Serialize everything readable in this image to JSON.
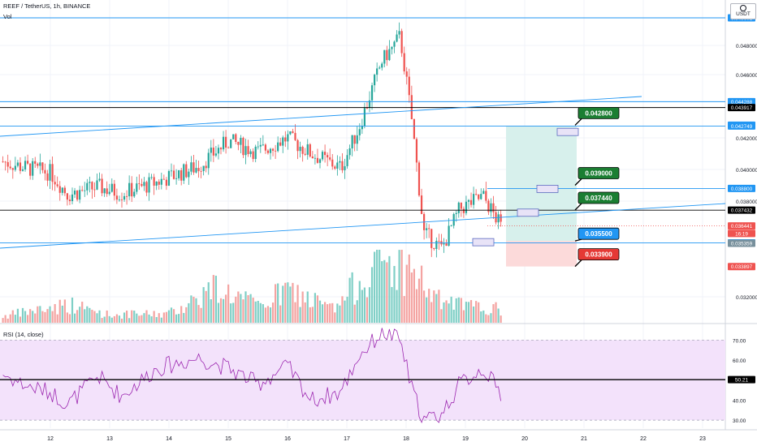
{
  "header": {
    "symbol_title": "REEF / TetherUS, 1h, BINANCE",
    "volume_label": "Vol",
    "rsi_label": "RSI (14, close)",
    "currency": "USDT"
  },
  "colors": {
    "bull": "#26a69a",
    "bear": "#ef5350",
    "line_blue": "#2196f3",
    "line_black": "#000000",
    "rsi_line": "#9c27b0",
    "rsi_band": "#f3e2fb",
    "target": "#d7f0ec",
    "stop": "#fcdada",
    "tag_green": "#1b7e32",
    "tag_blue": "#2196f3",
    "tag_red": "#e53935"
  },
  "price_axis": {
    "ticks": [
      "0.048000",
      "0.046000",
      "0.042000",
      "0.040000",
      "0.038000",
      "0.032000"
    ],
    "ylim": [
      0.03,
      0.0505
    ],
    "markers": [
      {
        "text": "0.049601",
        "kind": "blue",
        "price": 0.049601
      },
      {
        "text": "0.044288",
        "kind": "blue",
        "price": 0.044288
      },
      {
        "text": "0.043917",
        "kind": "black",
        "price": 0.043917
      },
      {
        "text": "0.042801",
        "kind": "blue",
        "price": 0.042801
      },
      {
        "text": "0.042749",
        "kind": "blue",
        "price": 0.042749
      },
      {
        "text": "0.038800",
        "kind": "blue",
        "price": 0.0388
      },
      {
        "text": "0.037432",
        "kind": "black",
        "price": 0.037432
      },
      {
        "text": "0.036441",
        "kind": "red",
        "price": 0.036441
      },
      {
        "text": "16:19",
        "kind": "red",
        "price": 0.03597
      },
      {
        "text": "0.035384",
        "kind": "blue",
        "price": 0.035384
      },
      {
        "text": "0.035359",
        "kind": "gray",
        "price": 0.035359
      },
      {
        "text": "0.033897",
        "kind": "red",
        "price": 0.033897
      }
    ]
  },
  "time_axis": {
    "labels": [
      "12",
      "13",
      "14",
      "15",
      "16",
      "17",
      "18",
      "19",
      "20",
      "21",
      "22",
      "23"
    ]
  },
  "rsi": {
    "ticks": [
      "70.00",
      "60.00",
      "40.00",
      "30.00"
    ],
    "current": "50.21"
  },
  "trade_tags": [
    {
      "text": "0.042800",
      "kind": "green",
      "price": 0.0428
    },
    {
      "text": "0.039000",
      "kind": "green",
      "price": 0.039
    },
    {
      "text": "0.037440",
      "kind": "green",
      "price": 0.03744
    },
    {
      "text": "0.035500",
      "kind": "blue",
      "price": 0.0355
    },
    {
      "text": "0.033900",
      "kind": "red",
      "price": 0.0339
    }
  ],
  "chart_data": {
    "type": "candlestick",
    "title": "REEF / TetherUS, 1h, BINANCE",
    "x_labels": [
      "12",
      "13",
      "14",
      "15",
      "16",
      "17",
      "18",
      "19",
      "20",
      "21",
      "22",
      "23"
    ],
    "ylim": [
      0.03,
      0.0505
    ],
    "close_path": [
      {
        "day": 11.2,
        "price": 0.0405
      },
      {
        "day": 11.6,
        "price": 0.0401
      },
      {
        "day": 12.0,
        "price": 0.0398
      },
      {
        "day": 12.3,
        "price": 0.0384
      },
      {
        "day": 12.8,
        "price": 0.0389
      },
      {
        "day": 13.2,
        "price": 0.0385
      },
      {
        "day": 13.8,
        "price": 0.0392
      },
      {
        "day": 14.5,
        "price": 0.0402
      },
      {
        "day": 15.0,
        "price": 0.0418
      },
      {
        "day": 15.5,
        "price": 0.0411
      },
      {
        "day": 16.0,
        "price": 0.042
      },
      {
        "day": 16.4,
        "price": 0.041
      },
      {
        "day": 16.9,
        "price": 0.0401
      },
      {
        "day": 17.2,
        "price": 0.0426
      },
      {
        "day": 17.6,
        "price": 0.047
      },
      {
        "day": 17.9,
        "price": 0.0485
      },
      {
        "day": 18.1,
        "price": 0.043
      },
      {
        "day": 18.3,
        "price": 0.036
      },
      {
        "day": 18.6,
        "price": 0.035
      },
      {
        "day": 18.9,
        "price": 0.0375
      },
      {
        "day": 19.3,
        "price": 0.0383
      },
      {
        "day": 19.6,
        "price": 0.0364
      }
    ],
    "volume_path": [
      {
        "day": 11.2,
        "value": 0.1
      },
      {
        "day": 12.3,
        "value": 0.28
      },
      {
        "day": 13.0,
        "value": 0.12
      },
      {
        "day": 14.0,
        "value": 0.14
      },
      {
        "day": 14.8,
        "value": 0.55
      },
      {
        "day": 15.5,
        "value": 0.25
      },
      {
        "day": 16.0,
        "value": 0.5
      },
      {
        "day": 16.8,
        "value": 0.2
      },
      {
        "day": 17.5,
        "value": 0.95
      },
      {
        "day": 18.1,
        "value": 0.8
      },
      {
        "day": 18.5,
        "value": 0.35
      },
      {
        "day": 19.0,
        "value": 0.25
      },
      {
        "day": 19.6,
        "value": 0.2
      }
    ],
    "rsi_path": [
      {
        "day": 11.2,
        "value": 53
      },
      {
        "day": 11.6,
        "value": 47
      },
      {
        "day": 12.0,
        "value": 44
      },
      {
        "day": 12.3,
        "value": 38
      },
      {
        "day": 12.8,
        "value": 52
      },
      {
        "day": 13.2,
        "value": 42
      },
      {
        "day": 13.8,
        "value": 56
      },
      {
        "day": 14.5,
        "value": 61
      },
      {
        "day": 15.0,
        "value": 56
      },
      {
        "day": 15.5,
        "value": 48
      },
      {
        "day": 16.0,
        "value": 57
      },
      {
        "day": 16.4,
        "value": 40
      },
      {
        "day": 16.9,
        "value": 44
      },
      {
        "day": 17.2,
        "value": 62
      },
      {
        "day": 17.6,
        "value": 74
      },
      {
        "day": 17.9,
        "value": 70
      },
      {
        "day": 18.1,
        "value": 45
      },
      {
        "day": 18.3,
        "value": 30
      },
      {
        "day": 18.6,
        "value": 33
      },
      {
        "day": 18.9,
        "value": 48
      },
      {
        "day": 19.3,
        "value": 56
      },
      {
        "day": 19.6,
        "value": 43
      }
    ],
    "rsi_ylim": [
      26,
      77
    ]
  }
}
